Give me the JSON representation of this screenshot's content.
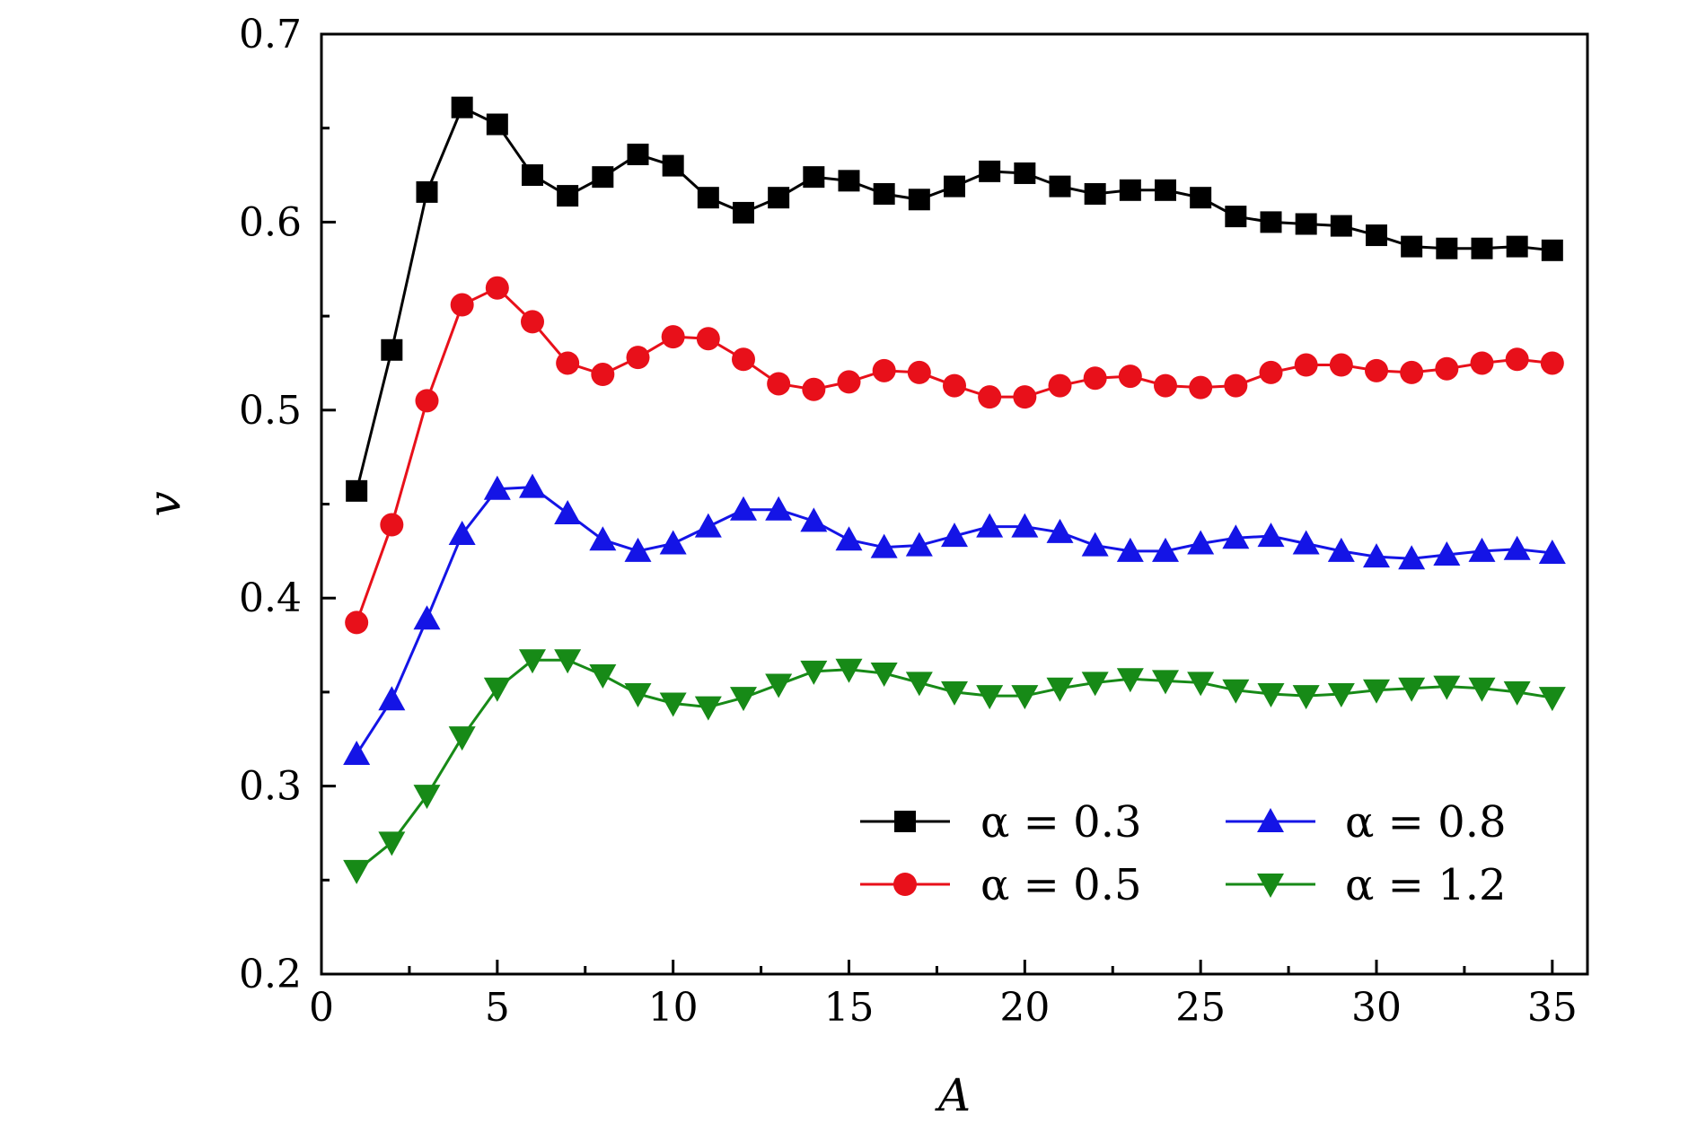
{
  "chart_data": {
    "type": "line",
    "xlabel": "A",
    "ylabel": "v",
    "xlim": [
      0,
      36
    ],
    "ylim": [
      0.2,
      0.7
    ],
    "x_ticks": [
      "0",
      "5",
      "10",
      "15",
      "20",
      "25",
      "30",
      "35"
    ],
    "y_ticks": [
      "0.2",
      "0.3",
      "0.4",
      "0.5",
      "0.6",
      "0.7"
    ],
    "legend": {
      "placement": "bottom-right",
      "columns": 2
    },
    "x": [
      1,
      2,
      3,
      4,
      5,
      6,
      7,
      8,
      9,
      10,
      11,
      12,
      13,
      14,
      15,
      16,
      17,
      18,
      19,
      20,
      21,
      22,
      23,
      24,
      25,
      26,
      27,
      28,
      29,
      30,
      31,
      32,
      33,
      34,
      35
    ],
    "series": [
      {
        "name": "α = 0.3",
        "color": "#000000",
        "marker": "square",
        "values": [
          0.457,
          0.532,
          0.616,
          0.661,
          0.652,
          0.625,
          0.614,
          0.624,
          0.636,
          0.63,
          0.613,
          0.605,
          0.613,
          0.624,
          0.622,
          0.615,
          0.612,
          0.619,
          0.627,
          0.626,
          0.619,
          0.615,
          0.617,
          0.617,
          0.613,
          0.603,
          0.6,
          0.599,
          0.598,
          0.593,
          0.587,
          0.586,
          0.586,
          0.587,
          0.585
        ]
      },
      {
        "name": "α = 0.5",
        "color": "#e8101a",
        "marker": "circle",
        "values": [
          0.387,
          0.439,
          0.505,
          0.556,
          0.565,
          0.547,
          0.525,
          0.519,
          0.528,
          0.539,
          0.538,
          0.527,
          0.514,
          0.511,
          0.515,
          0.521,
          0.52,
          0.513,
          0.507,
          0.507,
          0.513,
          0.517,
          0.518,
          0.513,
          0.512,
          0.513,
          0.52,
          0.524,
          0.524,
          0.521,
          0.52,
          0.522,
          0.525,
          0.527,
          0.525
        ]
      },
      {
        "name": "α = 0.8",
        "color": "#1414e6",
        "marker": "triangle-up",
        "values": [
          0.317,
          0.346,
          0.389,
          0.434,
          0.458,
          0.459,
          0.445,
          0.431,
          0.425,
          0.429,
          0.438,
          0.447,
          0.447,
          0.441,
          0.431,
          0.427,
          0.428,
          0.433,
          0.438,
          0.438,
          0.435,
          0.428,
          0.425,
          0.425,
          0.429,
          0.432,
          0.433,
          0.429,
          0.425,
          0.422,
          0.421,
          0.423,
          0.425,
          0.426,
          0.424
        ]
      },
      {
        "name": "α = 1.2",
        "color": "#178a17",
        "marker": "triangle-down",
        "values": [
          0.255,
          0.27,
          0.295,
          0.326,
          0.352,
          0.367,
          0.367,
          0.359,
          0.349,
          0.344,
          0.342,
          0.347,
          0.354,
          0.361,
          0.362,
          0.36,
          0.355,
          0.35,
          0.348,
          0.348,
          0.352,
          0.355,
          0.357,
          0.356,
          0.355,
          0.351,
          0.349,
          0.348,
          0.349,
          0.351,
          0.352,
          0.353,
          0.352,
          0.35,
          0.347
        ]
      }
    ]
  }
}
